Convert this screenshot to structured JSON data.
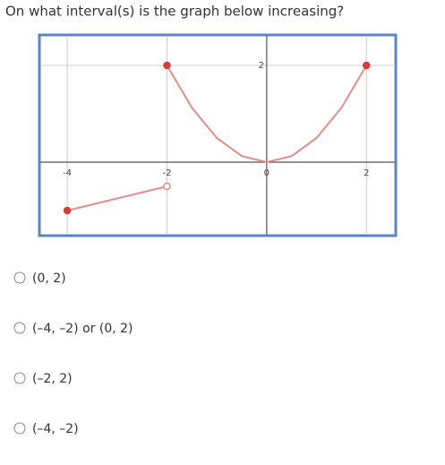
{
  "question": "On what interval(s) is the graph below increasing?",
  "chart_data": {
    "type": "line",
    "xlim": [
      -4.54,
      2.57
    ],
    "ylim": [
      -1.5,
      2.61
    ],
    "xticks": [
      -4,
      -2,
      0,
      2
    ],
    "yticks": [
      2
    ],
    "grid": true,
    "series": [
      {
        "color": "#e38c8c",
        "x": [
          -4,
          -2
        ],
        "values": [
          -1,
          -0.5
        ],
        "endpoints": [
          "closed",
          "open"
        ]
      },
      {
        "color": "#e38c8c",
        "x": [
          -2,
          -1.5,
          -1,
          -0.5,
          0,
          0.5,
          1,
          1.5,
          2
        ],
        "values": [
          2,
          1.125,
          0.5,
          0.125,
          0,
          0.125,
          0.5,
          1.125,
          2
        ],
        "endpoints": [
          "closed",
          "closed"
        ]
      }
    ]
  },
  "options": [
    "(0, 2)",
    "(–4, –2) or (0, 2)",
    "(–2, 2)",
    "(–4, –2)"
  ]
}
